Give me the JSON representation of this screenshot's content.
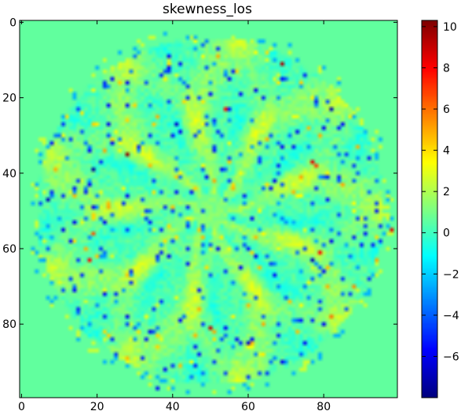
{
  "chart_data": {
    "type": "heatmap",
    "title": "skewness_los",
    "grid": false,
    "colormap": "jet",
    "image_extent": {
      "x": [
        -0.5,
        99.5
      ],
      "y": [
        -0.5,
        99.5
      ]
    },
    "x_axis": {
      "ticks": [
        0,
        20,
        40,
        60,
        80
      ],
      "range": [
        -0.5,
        99.5
      ]
    },
    "y_axis": {
      "ticks": [
        0,
        20,
        40,
        60,
        80
      ],
      "range": [
        -0.5,
        99.5
      ],
      "inverted": true
    },
    "colorbar": {
      "range": [
        -8,
        10.3
      ],
      "ticks": [
        10,
        8,
        6,
        4,
        2,
        0,
        -2,
        -4,
        -6
      ],
      "tick_labels": [
        "10",
        "8",
        "6",
        "4",
        "2",
        "0",
        "−2",
        "−4",
        "−6"
      ]
    },
    "background_value": 0.6,
    "pattern": {
      "center": [
        50,
        50
      ],
      "radius": 46,
      "petals": 9,
      "description_of_values": "radial star pattern of positive skewness filaments with scattered negative pixels"
    },
    "hotspots": [
      {
        "x": 69,
        "y": 11,
        "value": 9.5
      },
      {
        "x": 54,
        "y": 23,
        "value": 8.0
      },
      {
        "x": 28,
        "y": 35,
        "value": 10.0
      },
      {
        "x": 77,
        "y": 37,
        "value": 8.5
      },
      {
        "x": 78,
        "y": 38,
        "value": 7.0
      },
      {
        "x": 19,
        "y": 56,
        "value": 6.5
      },
      {
        "x": 79,
        "y": 61,
        "value": 8.0
      },
      {
        "x": 18,
        "y": 63,
        "value": 8.0
      },
      {
        "x": 50,
        "y": 81,
        "value": 9.0
      },
      {
        "x": 98,
        "y": 55,
        "value": 8.5
      },
      {
        "x": 74,
        "y": 41,
        "value": 5.0
      },
      {
        "x": 22,
        "y": 34,
        "value": 5.0
      },
      {
        "x": 82,
        "y": 78,
        "value": 6.0
      },
      {
        "x": 88,
        "y": 70,
        "value": 5.5
      },
      {
        "x": 94,
        "y": 57,
        "value": 4.0
      }
    ],
    "coldspots": [
      {
        "x": 19,
        "y": 39,
        "value": -7.5
      },
      {
        "x": 7,
        "y": 47,
        "value": -7.0
      },
      {
        "x": 41,
        "y": 27,
        "value": -6.5
      },
      {
        "x": 77,
        "y": 63,
        "value": -7.0
      },
      {
        "x": 34,
        "y": 82,
        "value": -6.0
      },
      {
        "x": 36,
        "y": 97,
        "value": -5.5
      },
      {
        "x": 82,
        "y": 23,
        "value": -7.0
      },
      {
        "x": 14,
        "y": 53,
        "value": -6.0
      },
      {
        "x": 60,
        "y": 85,
        "value": -6.5
      },
      {
        "x": 66,
        "y": 44,
        "value": -5.5
      }
    ]
  }
}
